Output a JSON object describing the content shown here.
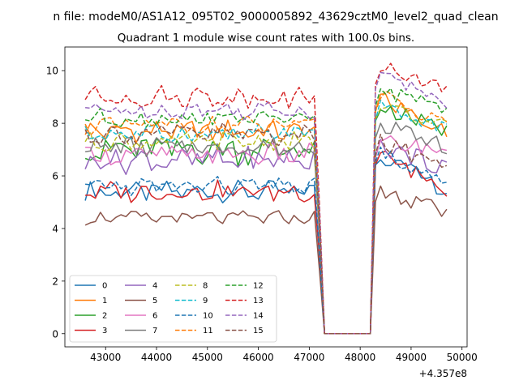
{
  "chart_data": {
    "type": "line",
    "suptitle": "n file: modeM0/AS1A12_095T02_9000005892_43629cztM0_level2_quad_clean",
    "title": "Quadrant 1 module wise count rates with 100.0s bins.",
    "xlabel": "",
    "ylabel": "",
    "offset_text": "+4.357e8",
    "x_offset": 435700000,
    "xlim": [
      42200,
      50100
    ],
    "ylim": [
      -0.5,
      10.9
    ],
    "x_ticks": [
      43000,
      44000,
      45000,
      46000,
      47000,
      48000,
      49000,
      50000
    ],
    "x_tick_labels": [
      "43000",
      "44000",
      "45000",
      "46000",
      "47000",
      "48000",
      "49000",
      "50000"
    ],
    "y_ticks": [
      0,
      2,
      4,
      6,
      8,
      10
    ],
    "y_tick_labels": [
      "0",
      "2",
      "4",
      "6",
      "8",
      "10"
    ],
    "grid": false,
    "legend_position": "lower-left",
    "legend_columns": 4,
    "x_start": 42600,
    "x_step": 100,
    "gap_x": [
      47300,
      48200
    ],
    "series": [
      {
        "name": "0",
        "color": "#1f77b4",
        "dash": "solid",
        "pre": 5.4,
        "pre_amp": 0.45,
        "post_start": 6.9,
        "post_end": 5.4,
        "post_amp": 0.3
      },
      {
        "name": "1",
        "color": "#ff7f0e",
        "dash": "solid",
        "pre": 7.7,
        "pre_amp": 0.5,
        "post_start": 9.1,
        "post_end": 7.6,
        "post_amp": 0.35
      },
      {
        "name": "2",
        "color": "#2ca02c",
        "dash": "solid",
        "pre": 7.0,
        "pre_amp": 0.7,
        "post_start": 8.7,
        "post_end": 7.7,
        "post_amp": 0.3
      },
      {
        "name": "3",
        "color": "#d62728",
        "dash": "solid",
        "pre": 5.4,
        "pre_amp": 0.45,
        "post_start": 6.9,
        "post_end": 5.5,
        "post_amp": 0.3
      },
      {
        "name": "4",
        "color": "#9467bd",
        "dash": "solid",
        "pre": 6.6,
        "pre_amp": 0.55,
        "post_start": 7.2,
        "post_end": 6.3,
        "post_amp": 0.35
      },
      {
        "name": "5",
        "color": "#8c564b",
        "dash": "solid",
        "pre": 4.4,
        "pre_amp": 0.3,
        "post_start": 5.4,
        "post_end": 4.6,
        "post_amp": 0.35
      },
      {
        "name": "6",
        "color": "#e377c2",
        "dash": "solid",
        "pre": 6.8,
        "pre_amp": 0.45,
        "post_start": 7.3,
        "post_end": 7.0,
        "post_amp": 0.3
      },
      {
        "name": "7",
        "color": "#7f7f7f",
        "dash": "solid",
        "pre": 7.1,
        "pre_amp": 0.45,
        "post_start": 8.0,
        "post_end": 7.1,
        "post_amp": 0.3
      },
      {
        "name": "8",
        "color": "#bcbd22",
        "dash": "dashed",
        "pre": 7.3,
        "pre_amp": 0.4,
        "post_start": 8.8,
        "post_end": 7.8,
        "post_amp": 0.3
      },
      {
        "name": "9",
        "color": "#17becf",
        "dash": "dashed",
        "pre": 7.6,
        "pre_amp": 0.4,
        "post_start": 8.7,
        "post_end": 7.8,
        "post_amp": 0.3
      },
      {
        "name": "10",
        "color": "#1f77b4",
        "dash": "dashed",
        "pre": 5.6,
        "pre_amp": 0.4,
        "post_start": 7.0,
        "post_end": 5.7,
        "post_amp": 0.3
      },
      {
        "name": "11",
        "color": "#ff7f0e",
        "dash": "dashed",
        "pre": 7.9,
        "pre_amp": 0.4,
        "post_start": 9.1,
        "post_end": 8.0,
        "post_amp": 0.3
      },
      {
        "name": "12",
        "color": "#2ca02c",
        "dash": "dashed",
        "pre": 8.2,
        "pre_amp": 0.4,
        "post_start": 9.3,
        "post_end": 8.6,
        "post_amp": 0.3
      },
      {
        "name": "13",
        "color": "#d62728",
        "dash": "dashed",
        "pre": 9.0,
        "pre_amp": 0.45,
        "post_start": 10.2,
        "post_end": 9.4,
        "post_amp": 0.3
      },
      {
        "name": "14",
        "color": "#9467bd",
        "dash": "dashed",
        "pre": 8.5,
        "pre_amp": 0.4,
        "post_start": 10.0,
        "post_end": 8.8,
        "post_amp": 0.3
      },
      {
        "name": "15",
        "color": "#8c564b",
        "dash": "dashed",
        "pre": 7.6,
        "pre_amp": 0.5,
        "post_start": 7.3,
        "post_end": 6.4,
        "post_amp": 0.35
      }
    ]
  }
}
